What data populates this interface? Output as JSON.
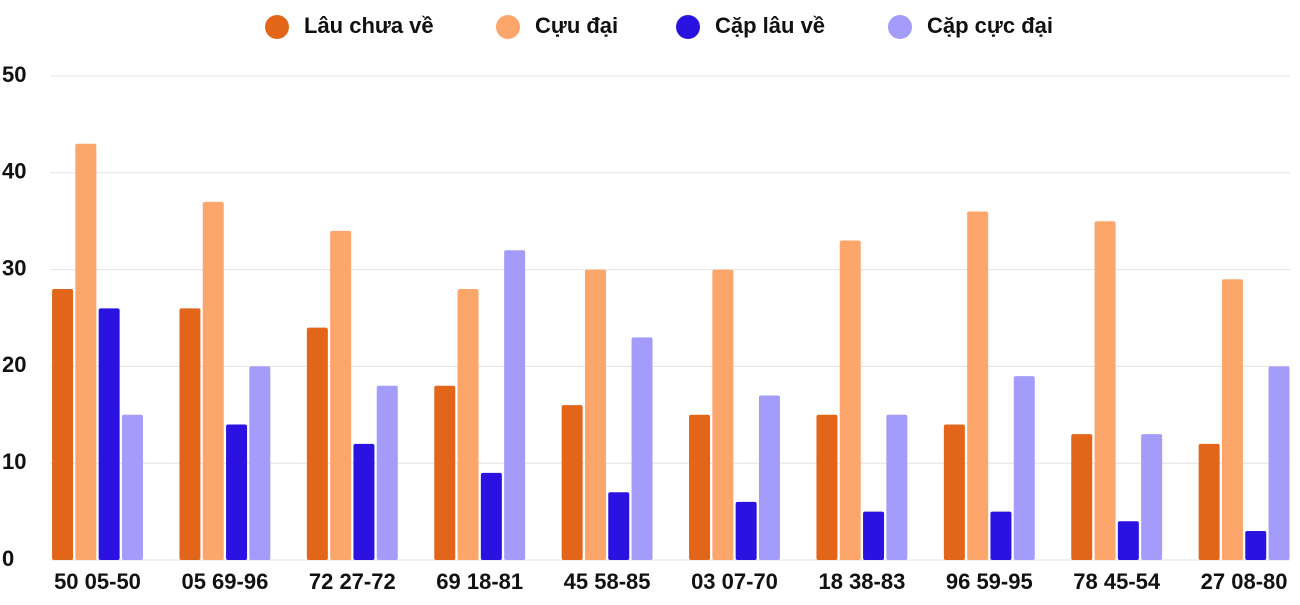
{
  "chart_data": {
    "type": "bar",
    "categories": [
      "50 05-50",
      "05 69-96",
      "72 27-72",
      "69 18-81",
      "45 58-85",
      "03 07-70",
      "18 38-83",
      "96 59-95",
      "78 45-54",
      "27 08-80"
    ],
    "series": [
      {
        "name": "Lâu chưa về",
        "color": "#e2651a",
        "values": [
          28,
          26,
          24,
          18,
          16,
          15,
          15,
          14,
          13,
          12
        ]
      },
      {
        "name": "Cựu đại",
        "color": "#fda66b",
        "values": [
          43,
          37,
          34,
          28,
          30,
          30,
          33,
          36,
          35,
          29
        ]
      },
      {
        "name": "Cặp lâu về",
        "color": "#2a12e0",
        "values": [
          26,
          14,
          12,
          9,
          7,
          6,
          5,
          5,
          4,
          3
        ]
      },
      {
        "name": "Cặp cực đại",
        "color": "#a49cfb",
        "values": [
          15,
          20,
          18,
          32,
          23,
          17,
          15,
          19,
          13,
          20
        ]
      }
    ],
    "ylim": [
      0,
      50
    ],
    "yticks": [
      0,
      10,
      20,
      30,
      40,
      50
    ],
    "grid": true,
    "legend": "top"
  }
}
